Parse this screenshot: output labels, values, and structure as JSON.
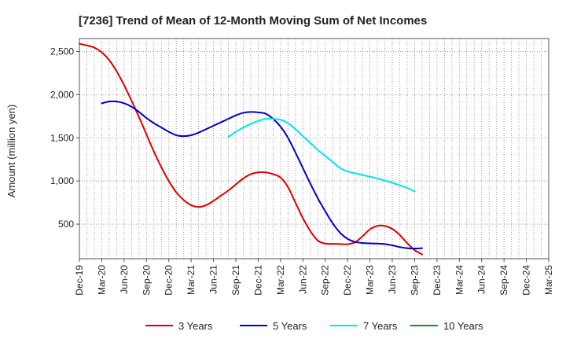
{
  "chart_data": {
    "type": "line",
    "title": "[7236]  Trend of Mean of 12-Month Moving Sum of Net Incomes",
    "xlabel": "",
    "ylabel": "Amount (million yen)",
    "ylim": [
      100,
      2650
    ],
    "y_ticks": [
      500,
      1000,
      1500,
      2000,
      2500
    ],
    "y_tick_labels": [
      "500",
      "1,000",
      "1,500",
      "2,000",
      "2,500"
    ],
    "x_tick_labels": [
      "Dec-19",
      "Mar-20",
      "Jun-20",
      "Sep-20",
      "Dec-20",
      "Mar-21",
      "Jun-21",
      "Sep-21",
      "Dec-21",
      "Mar-22",
      "Jun-22",
      "Sep-22",
      "Dec-22",
      "Mar-23",
      "Jun-23",
      "Sep-23",
      "Dec-23",
      "Mar-24",
      "Jun-24",
      "Sep-24",
      "Dec-24",
      "Mar-25"
    ],
    "grid": true,
    "legend_position": "bottom",
    "series": [
      {
        "name": "3 Years",
        "color": "#dd0000",
        "points": [
          [
            0,
            2590
          ],
          [
            1,
            2570
          ],
          [
            2,
            2545
          ],
          [
            3,
            2490
          ],
          [
            4,
            2400
          ],
          [
            5,
            2270
          ],
          [
            6,
            2110
          ],
          [
            7,
            1930
          ],
          [
            8,
            1740
          ],
          [
            9,
            1540
          ],
          [
            10,
            1340
          ],
          [
            11,
            1160
          ],
          [
            12,
            1000
          ],
          [
            13,
            870
          ],
          [
            14,
            780
          ],
          [
            15,
            720
          ],
          [
            16,
            700
          ],
          [
            17,
            720
          ],
          [
            18,
            770
          ],
          [
            19,
            830
          ],
          [
            20,
            890
          ],
          [
            21,
            960
          ],
          [
            22,
            1030
          ],
          [
            23,
            1080
          ],
          [
            24,
            1100
          ],
          [
            25,
            1100
          ],
          [
            26,
            1080
          ],
          [
            27,
            1040
          ],
          [
            28,
            930
          ],
          [
            29,
            750
          ],
          [
            30,
            570
          ],
          [
            31,
            420
          ],
          [
            32,
            310
          ],
          [
            33,
            275
          ],
          [
            34,
            272
          ],
          [
            35,
            270
          ],
          [
            36,
            268
          ],
          [
            37,
            290
          ],
          [
            38,
            360
          ],
          [
            39,
            440
          ],
          [
            40,
            480
          ],
          [
            41,
            480
          ],
          [
            42,
            445
          ],
          [
            43,
            375
          ],
          [
            44,
            280
          ],
          [
            45,
            200
          ],
          [
            46,
            150
          ]
        ]
      },
      {
        "name": "5 Years",
        "color": "#0000cc",
        "points": [
          [
            3,
            1900
          ],
          [
            4,
            1920
          ],
          [
            5,
            1920
          ],
          [
            6,
            1900
          ],
          [
            7,
            1860
          ],
          [
            8,
            1800
          ],
          [
            9,
            1730
          ],
          [
            10,
            1670
          ],
          [
            11,
            1620
          ],
          [
            12,
            1570
          ],
          [
            13,
            1530
          ],
          [
            14,
            1520
          ],
          [
            15,
            1530
          ],
          [
            16,
            1560
          ],
          [
            17,
            1600
          ],
          [
            18,
            1640
          ],
          [
            19,
            1680
          ],
          [
            20,
            1720
          ],
          [
            21,
            1760
          ],
          [
            22,
            1790
          ],
          [
            23,
            1800
          ],
          [
            24,
            1795
          ],
          [
            25,
            1780
          ],
          [
            26,
            1720
          ],
          [
            27,
            1630
          ],
          [
            28,
            1500
          ],
          [
            29,
            1330
          ],
          [
            30,
            1150
          ],
          [
            31,
            970
          ],
          [
            32,
            800
          ],
          [
            33,
            650
          ],
          [
            34,
            510
          ],
          [
            35,
            400
          ],
          [
            36,
            330
          ],
          [
            37,
            295
          ],
          [
            38,
            282
          ],
          [
            39,
            278
          ],
          [
            40,
            275
          ],
          [
            41,
            270
          ],
          [
            42,
            255
          ],
          [
            43,
            235
          ],
          [
            44,
            222
          ],
          [
            45,
            218
          ],
          [
            46,
            222
          ]
        ]
      },
      {
        "name": "7 Years",
        "color": "#00e5e5",
        "points": [
          [
            20,
            1510
          ],
          [
            21,
            1570
          ],
          [
            22,
            1620
          ],
          [
            23,
            1660
          ],
          [
            24,
            1695
          ],
          [
            25,
            1720
          ],
          [
            26,
            1720
          ],
          [
            27,
            1710
          ],
          [
            28,
            1670
          ],
          [
            29,
            1600
          ],
          [
            30,
            1520
          ],
          [
            31,
            1440
          ],
          [
            32,
            1360
          ],
          [
            33,
            1290
          ],
          [
            34,
            1220
          ],
          [
            35,
            1150
          ],
          [
            36,
            1110
          ],
          [
            37,
            1090
          ],
          [
            38,
            1070
          ],
          [
            39,
            1050
          ],
          [
            40,
            1030
          ],
          [
            41,
            1005
          ],
          [
            42,
            980
          ],
          [
            43,
            950
          ],
          [
            44,
            920
          ],
          [
            45,
            880
          ]
        ]
      },
      {
        "name": "10 Years",
        "color": "#228822",
        "points": []
      }
    ]
  }
}
